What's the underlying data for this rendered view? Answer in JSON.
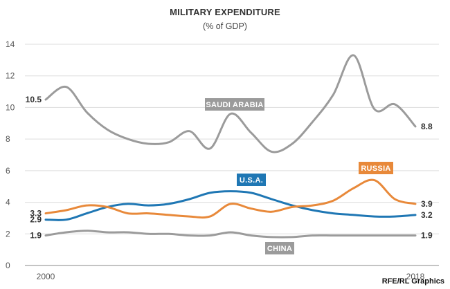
{
  "chart_data": {
    "type": "line",
    "title": "MILITARY EXPENDITURE",
    "subtitle": "(% of GDP)",
    "xlabel": "",
    "ylabel": "",
    "x_ticks": [
      "2000",
      "2018"
    ],
    "y_ticks": [
      0,
      2,
      4,
      6,
      8,
      10,
      12,
      14
    ],
    "xlim": [
      2000,
      2018
    ],
    "ylim": [
      0,
      14
    ],
    "grid": "horizontal",
    "x": [
      2000,
      2001,
      2002,
      2003,
      2004,
      2005,
      2006,
      2007,
      2008,
      2009,
      2010,
      2011,
      2012,
      2013,
      2014,
      2015,
      2016,
      2017,
      2018
    ],
    "series": [
      {
        "name": "SAUDI ARABIA",
        "color": "#9b9b9b",
        "values": [
          10.5,
          11.3,
          9.7,
          8.6,
          8.0,
          7.7,
          7.8,
          8.5,
          7.4,
          9.6,
          8.4,
          7.2,
          7.7,
          9.1,
          10.8,
          13.3,
          9.9,
          10.2,
          8.8
        ],
        "start_label": "10.5",
        "end_label": "8.8"
      },
      {
        "name": "U.S.A.",
        "color": "#1f77b4",
        "values": [
          2.9,
          2.9,
          3.3,
          3.7,
          3.9,
          3.8,
          3.9,
          4.2,
          4.6,
          4.7,
          4.6,
          4.2,
          3.8,
          3.5,
          3.3,
          3.2,
          3.1,
          3.1,
          3.2
        ],
        "start_label": "2.9",
        "end_label": "3.2"
      },
      {
        "name": "RUSSIA",
        "color": "#e8893a",
        "values": [
          3.3,
          3.5,
          3.8,
          3.7,
          3.3,
          3.3,
          3.2,
          3.1,
          3.1,
          3.9,
          3.6,
          3.4,
          3.7,
          3.8,
          4.1,
          4.9,
          5.4,
          4.2,
          3.9
        ],
        "start_label": "3.3",
        "end_label": "3.9"
      },
      {
        "name": "CHINA",
        "color": "#9b9b9b",
        "values": [
          1.9,
          2.1,
          2.2,
          2.1,
          2.1,
          2.0,
          2.0,
          1.9,
          1.9,
          2.1,
          1.9,
          1.8,
          1.8,
          1.9,
          1.9,
          1.9,
          1.9,
          1.9,
          1.9
        ],
        "start_label": "1.9",
        "end_label": "1.9"
      }
    ]
  },
  "credit": "RFE/RL Graphics"
}
